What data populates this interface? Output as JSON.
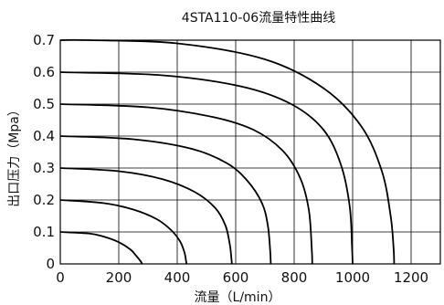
{
  "chart_data": {
    "type": "line",
    "title": "4STA110-06流量特性曲线",
    "xlabel": "流量（L/min）",
    "ylabel": "出口压力（Mpa）",
    "xlim": [
      0,
      1300
    ],
    "ylim": [
      0,
      0.7
    ],
    "x_ticks": [
      "0",
      "200",
      "400",
      "600",
      "800",
      "1000",
      "1200"
    ],
    "y_ticks": [
      "0",
      "0.1",
      "0.2",
      "0.3",
      "0.4",
      "0.5",
      "0.6",
      "0.7"
    ],
    "grid": true,
    "line_color": "#000000",
    "series": [
      {
        "x": [
          0,
          100,
          150,
          200,
          240,
          260,
          275,
          280
        ],
        "y": [
          0.1,
          0.095,
          0.085,
          0.068,
          0.045,
          0.025,
          0.008,
          0
        ]
      },
      {
        "x": [
          0,
          150,
          250,
          330,
          380,
          410,
          425,
          430,
          432
        ],
        "y": [
          0.2,
          0.19,
          0.17,
          0.14,
          0.105,
          0.07,
          0.035,
          0.01,
          0
        ]
      },
      {
        "x": [
          0,
          200,
          350,
          460,
          530,
          565,
          580,
          585,
          587
        ],
        "y": [
          0.3,
          0.29,
          0.265,
          0.225,
          0.175,
          0.12,
          0.06,
          0.02,
          0
        ]
      },
      {
        "x": [
          0,
          250,
          450,
          570,
          640,
          690,
          710,
          718,
          720
        ],
        "y": [
          0.4,
          0.39,
          0.36,
          0.315,
          0.26,
          0.19,
          0.12,
          0.04,
          0
        ]
      },
      {
        "x": [
          0,
          300,
          520,
          660,
          760,
          820,
          850,
          860,
          862
        ],
        "y": [
          0.5,
          0.49,
          0.46,
          0.42,
          0.355,
          0.27,
          0.17,
          0.05,
          0
        ]
      },
      {
        "x": [
          0,
          350,
          620,
          790,
          900,
          960,
          990,
          998,
          1000
        ],
        "y": [
          0.6,
          0.59,
          0.555,
          0.5,
          0.42,
          0.31,
          0.18,
          0.05,
          0
        ]
      },
      {
        "x": [
          0,
          100,
          400,
          700,
          900,
          1030,
          1100,
          1130,
          1140,
          1142
        ],
        "y": [
          0.7,
          0.7,
          0.69,
          0.64,
          0.55,
          0.43,
          0.29,
          0.15,
          0.05,
          0
        ]
      }
    ]
  }
}
